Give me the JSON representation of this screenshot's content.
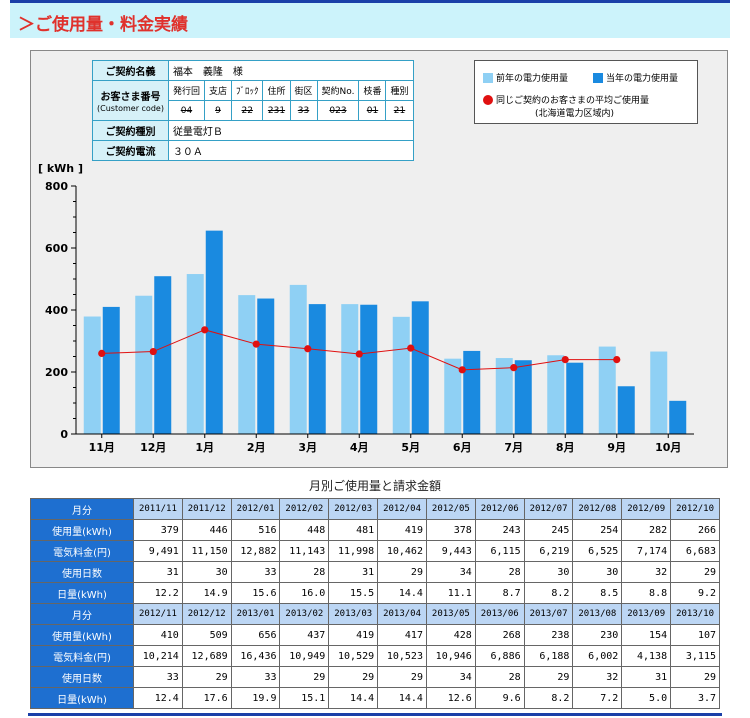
{
  "header": {
    "title": "＞ご使用量・料金実績"
  },
  "contract": {
    "name_label": "ご契約名義",
    "name_value": "福本　義隆　様",
    "customer_label": "お客さま番号",
    "customer_label_en": "(Customer code)",
    "cols": [
      "発行回",
      "支店",
      "ﾌﾞﾛｯｸ",
      "住所",
      "街区",
      "契約No.",
      "枝番",
      "種別"
    ],
    "masked": [
      "04",
      "9",
      "22",
      "231",
      "33",
      "023",
      "01",
      "21"
    ],
    "type_label": "ご契約種別",
    "type_value": "従量電灯Ｂ",
    "current_label": "ご契約電流",
    "current_value": "３０Ａ"
  },
  "legend": {
    "prev": "前年の電力使用量",
    "curr": "当年の電力使用量",
    "avg": "同じご契約のお客さまの平均ご使用量",
    "avg_sub": "(北海道電力区域内)"
  },
  "chart_data": {
    "type": "bar",
    "ylabel": "[ kWh ]",
    "ylim": [
      0,
      800
    ],
    "yticks": [
      "0",
      "200",
      "400",
      "600",
      "800"
    ],
    "categories": [
      "11月",
      "12月",
      "1月",
      "2月",
      "3月",
      "4月",
      "5月",
      "6月",
      "7月",
      "8月",
      "9月",
      "10月"
    ],
    "series": [
      {
        "name": "前年の電力使用量",
        "color": "#8fd0f4",
        "values": [
          379,
          446,
          516,
          448,
          481,
          419,
          378,
          243,
          245,
          254,
          282,
          266
        ]
      },
      {
        "name": "当年の電力使用量",
        "color": "#1a8ae0",
        "values": [
          410,
          509,
          656,
          437,
          419,
          417,
          428,
          268,
          238,
          230,
          154,
          107
        ]
      },
      {
        "name": "同じご契約のお客さまの平均ご使用量",
        "type": "line",
        "color": "#e01010",
        "values": [
          260,
          266,
          336,
          290,
          275,
          258,
          277,
          207,
          214,
          240,
          240,
          null
        ]
      }
    ]
  },
  "caption": "月別ご使用量と請求金額",
  "table": {
    "blocks": [
      {
        "month_label": "月分",
        "months": [
          "2011/11",
          "2011/12",
          "2012/01",
          "2012/02",
          "2012/03",
          "2012/04",
          "2012/05",
          "2012/06",
          "2012/07",
          "2012/08",
          "2012/09",
          "2012/10"
        ],
        "rows": [
          {
            "label": "使用量(kWh)",
            "values": [
              "379",
              "446",
              "516",
              "448",
              "481",
              "419",
              "378",
              "243",
              "245",
              "254",
              "282",
              "266"
            ]
          },
          {
            "label": "電気料金(円)",
            "values": [
              "9,491",
              "11,150",
              "12,882",
              "11,143",
              "11,998",
              "10,462",
              "9,443",
              "6,115",
              "6,219",
              "6,525",
              "7,174",
              "6,683"
            ]
          },
          {
            "label": "使用日数",
            "values": [
              "31",
              "30",
              "33",
              "28",
              "31",
              "29",
              "34",
              "28",
              "30",
              "30",
              "32",
              "29"
            ]
          },
          {
            "label": "日量(kWh)",
            "values": [
              "12.2",
              "14.9",
              "15.6",
              "16.0",
              "15.5",
              "14.4",
              "11.1",
              "8.7",
              "8.2",
              "8.5",
              "8.8",
              "9.2"
            ]
          }
        ]
      },
      {
        "month_label": "月分",
        "months": [
          "2012/11",
          "2012/12",
          "2013/01",
          "2013/02",
          "2013/03",
          "2013/04",
          "2013/05",
          "2013/06",
          "2013/07",
          "2013/08",
          "2013/09",
          "2013/10"
        ],
        "rows": [
          {
            "label": "使用量(kWh)",
            "values": [
              "410",
              "509",
              "656",
              "437",
              "419",
              "417",
              "428",
              "268",
              "238",
              "230",
              "154",
              "107"
            ]
          },
          {
            "label": "電気料金(円)",
            "values": [
              "10,214",
              "12,689",
              "16,436",
              "10,949",
              "10,529",
              "10,523",
              "10,946",
              "6,886",
              "6,188",
              "6,002",
              "4,138",
              "3,115"
            ]
          },
          {
            "label": "使用日数",
            "values": [
              "33",
              "29",
              "33",
              "29",
              "29",
              "29",
              "34",
              "28",
              "29",
              "32",
              "31",
              "29"
            ]
          },
          {
            "label": "日量(kWh)",
            "values": [
              "12.4",
              "17.6",
              "19.9",
              "15.1",
              "14.4",
              "14.4",
              "12.6",
              "9.6",
              "8.2",
              "7.2",
              "5.0",
              "3.7"
            ]
          }
        ]
      }
    ]
  }
}
